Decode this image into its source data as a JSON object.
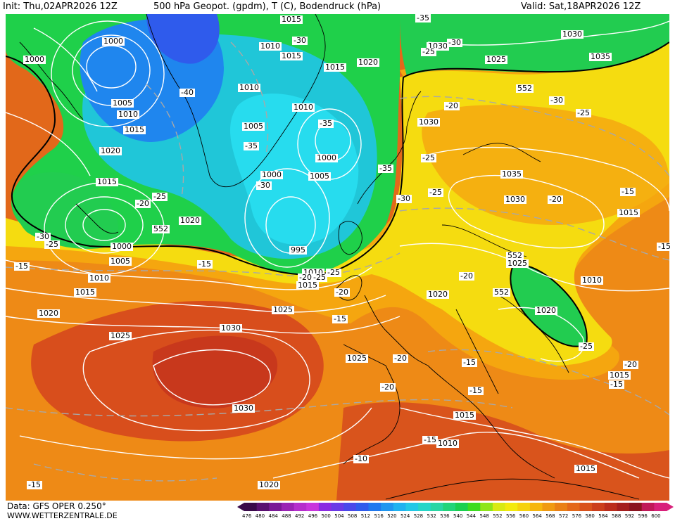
{
  "header": {
    "init": "Init: Thu,02APR2026 12Z",
    "title": "500 hPa Geopot. (gpdm), T (C), Bodendruck (hPa)",
    "valid": "Valid: Sat,18APR2026 12Z"
  },
  "footer": {
    "source": "Data: GFS OPER 0.250°",
    "site": "WWW.WETTERZENTRALE.DE"
  },
  "colorbar": {
    "ticks": [
      "476",
      "480",
      "484",
      "488",
      "492",
      "496",
      "500",
      "504",
      "508",
      "512",
      "516",
      "520",
      "524",
      "528",
      "532",
      "536",
      "540",
      "544",
      "548",
      "552",
      "556",
      "560",
      "564",
      "568",
      "572",
      "576",
      "580",
      "584",
      "588",
      "592",
      "596",
      "600"
    ],
    "colors": [
      "#3a0a4a",
      "#5a1070",
      "#7a1896",
      "#9a22b4",
      "#b52ecc",
      "#c836dc",
      "#8a2be2",
      "#6a3ae6",
      "#4a48ea",
      "#2f5bec",
      "#1f78ee",
      "#1f96f0",
      "#1fb2f0",
      "#22c8e6",
      "#26d6c8",
      "#2ad6a4",
      "#22d47a",
      "#1ad050",
      "#3cdc20",
      "#8ee51a",
      "#d8ea14",
      "#f3ea0e",
      "#f6d20e",
      "#f6b60e",
      "#f09a12",
      "#ea8016",
      "#e4681a",
      "#d9521c",
      "#cc3e1c",
      "#bb2c1c",
      "#a41e1e",
      "#8a1420",
      "#c01858",
      "#d8207a"
    ],
    "colors_note": ""
  },
  "map": {
    "pressure_labels": [
      {
        "t": "1015"
      },
      {
        "t": "1010"
      },
      {
        "t": "1015"
      },
      {
        "t": "1000"
      },
      {
        "t": "1000"
      },
      {
        "t": "1005"
      },
      {
        "t": "1010"
      },
      {
        "t": "1015"
      },
      {
        "t": "1020"
      },
      {
        "t": "1015"
      },
      {
        "t": "1020"
      },
      {
        "t": "1000"
      },
      {
        "t": "1005"
      },
      {
        "t": "1010"
      },
      {
        "t": "1015"
      },
      {
        "t": "1020"
      },
      {
        "t": "1010"
      },
      {
        "t": "1005"
      },
      {
        "t": "1010"
      },
      {
        "t": "1000"
      },
      {
        "t": "1005"
      },
      {
        "t": "1000"
      },
      {
        "t": "995"
      },
      {
        "t": "1010"
      },
      {
        "t": "1015"
      },
      {
        "t": "1015"
      },
      {
        "t": "1020"
      },
      {
        "t": "1030"
      },
      {
        "t": "1025"
      },
      {
        "t": "1030"
      },
      {
        "t": "1035"
      },
      {
        "t": "1030"
      },
      {
        "t": "1035"
      },
      {
        "t": "1030"
      },
      {
        "t": "1015"
      },
      {
        "t": "1025"
      },
      {
        "t": "1020"
      },
      {
        "t": "1010"
      },
      {
        "t": "1020"
      },
      {
        "t": "1015"
      },
      {
        "t": "1025"
      },
      {
        "t": "1030"
      },
      {
        "t": "1025"
      },
      {
        "t": "1030"
      },
      {
        "t": "1025"
      },
      {
        "t": "1020"
      },
      {
        "t": "1015"
      },
      {
        "t": "1010"
      },
      {
        "t": "1015"
      }
    ],
    "temp_labels": [
      {
        "t": "-35"
      },
      {
        "t": "-30"
      },
      {
        "t": "-30"
      },
      {
        "t": "-25"
      },
      {
        "t": "-40"
      },
      {
        "t": "-35"
      },
      {
        "t": "-35"
      },
      {
        "t": "-30"
      },
      {
        "t": "-35"
      },
      {
        "t": "-30"
      },
      {
        "t": "-25"
      },
      {
        "t": "-20"
      },
      {
        "t": "-30"
      },
      {
        "t": "-25"
      },
      {
        "t": "-20"
      },
      {
        "t": "-25"
      },
      {
        "t": "-30"
      },
      {
        "t": "-25"
      },
      {
        "t": "-25"
      },
      {
        "t": "-15"
      },
      {
        "t": "-20"
      },
      {
        "t": "-15"
      },
      {
        "t": "-20"
      },
      {
        "t": "-15"
      },
      {
        "t": "-25"
      },
      {
        "t": "-20"
      },
      {
        "t": "-15"
      },
      {
        "t": "-15"
      },
      {
        "t": "-20"
      },
      {
        "t": "-15"
      },
      {
        "t": "-10"
      },
      {
        "t": "-15"
      },
      {
        "t": "-15"
      },
      {
        "t": "-20"
      },
      {
        "t": "-25"
      },
      {
        "t": "-15"
      },
      {
        "t": "-20"
      },
      {
        "t": "-25"
      },
      {
        "t": "-15"
      },
      {
        "t": "-20"
      }
    ],
    "contour_552": [
      {
        "t": "552"
      },
      {
        "t": "552"
      },
      {
        "t": "552"
      },
      {
        "t": "552"
      }
    ]
  }
}
